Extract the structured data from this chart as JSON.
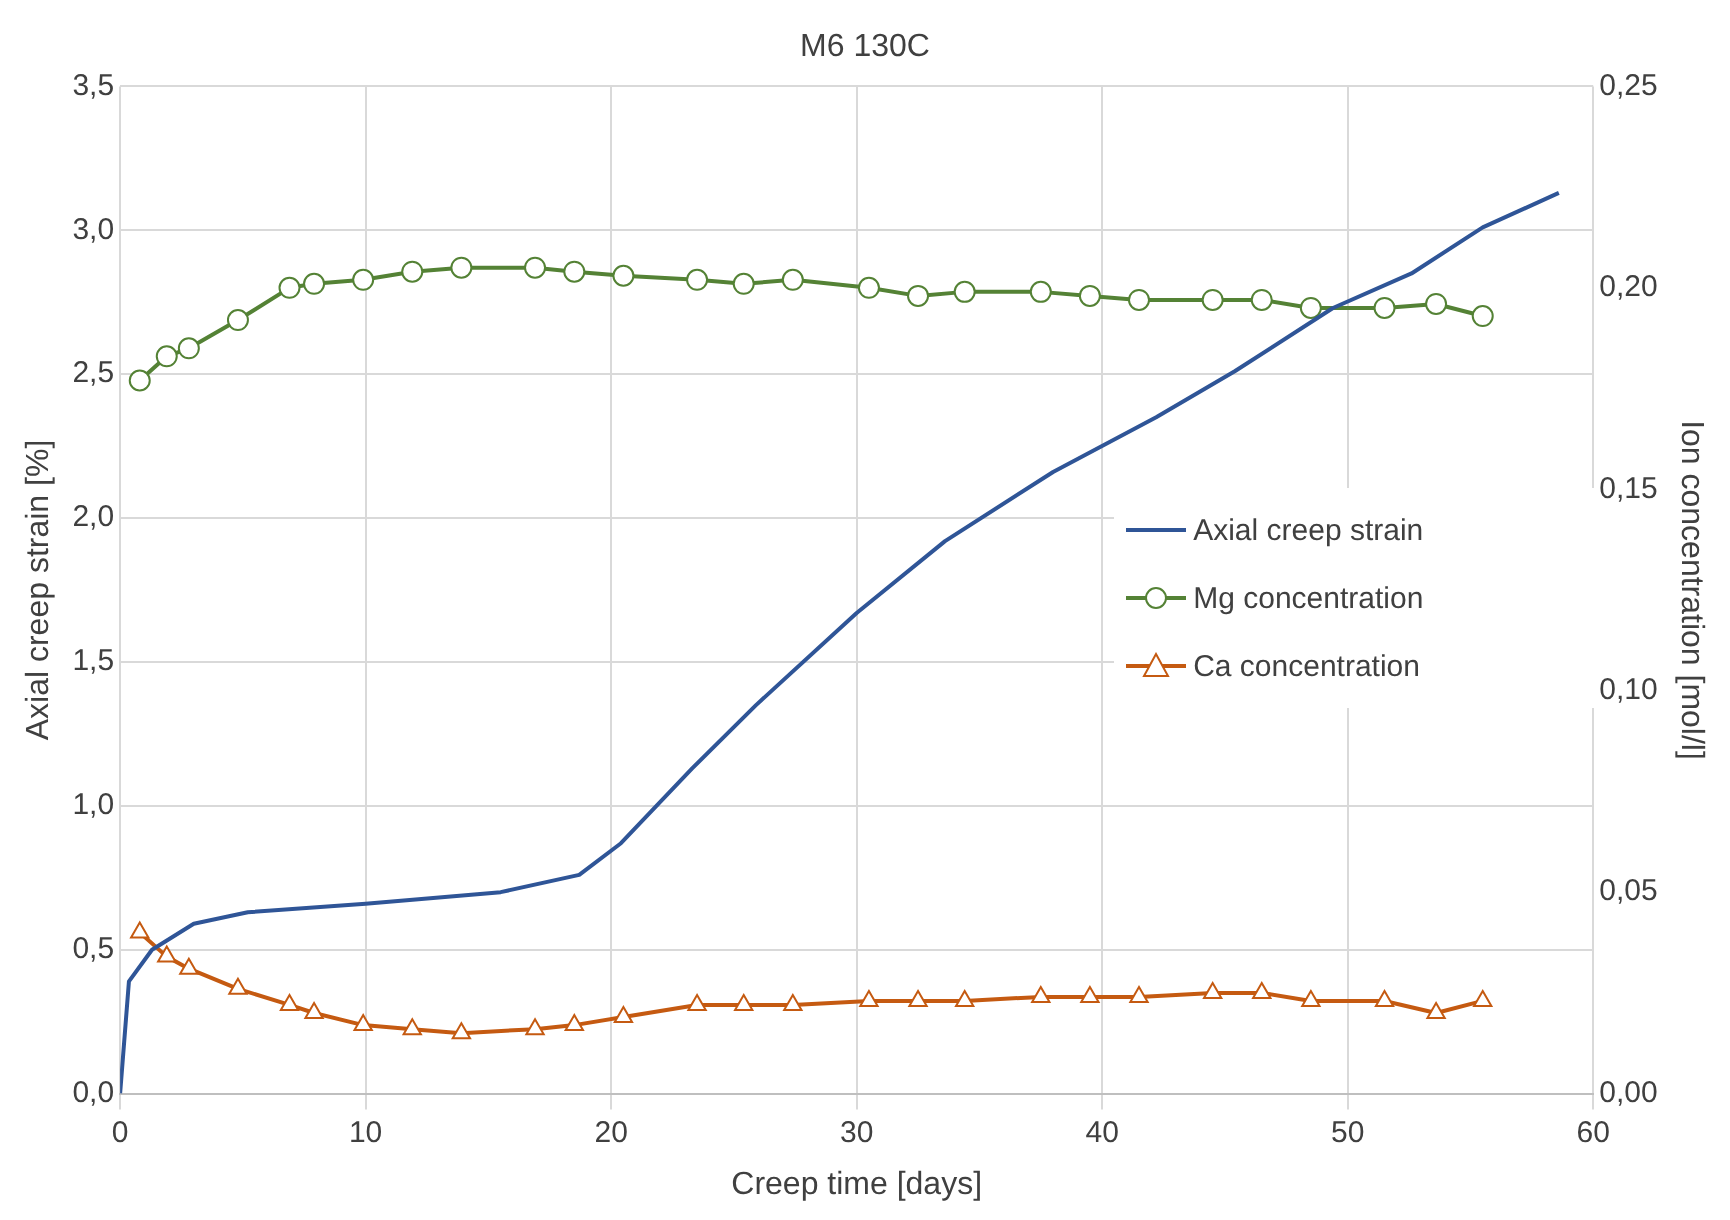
{
  "chart_data": {
    "type": "line",
    "title": "M6 130C",
    "xlabel": "Creep time [days]",
    "ylabel": "Axial creep strain [%]",
    "y2label": "Ion concentration [mol/l]",
    "xlim": [
      0,
      60
    ],
    "xticks": [
      0,
      10,
      20,
      30,
      40,
      50,
      60
    ],
    "ylim": [
      0,
      3.5
    ],
    "yticks": [
      {
        "value": 0,
        "label": "0,0"
      },
      {
        "value": 0.5,
        "label": "0,5"
      },
      {
        "value": 1,
        "label": "1,0"
      },
      {
        "value": 1.5,
        "label": "1,5"
      },
      {
        "value": 2,
        "label": "2,0"
      },
      {
        "value": 2.5,
        "label": "2,5"
      },
      {
        "value": 3,
        "label": "3,0"
      },
      {
        "value": 3.5,
        "label": "3,5"
      }
    ],
    "y2lim": [
      0,
      0.25
    ],
    "y2ticks": [
      {
        "value": 0,
        "label": "0,00"
      },
      {
        "value": 0.05,
        "label": "0,05"
      },
      {
        "value": 0.1,
        "label": "0,10"
      },
      {
        "value": 0.15,
        "label": "0,15"
      },
      {
        "value": 0.2,
        "label": "0,20"
      },
      {
        "value": 0.25,
        "label": "0,25"
      }
    ],
    "grid": true,
    "legend": "right",
    "line_style": "solid",
    "series": [
      {
        "name": "Axial creep strain",
        "color": "#2f5597",
        "marker": "none",
        "x": [
          0,
          0.36,
          1.3,
          3.0,
          5.2,
          10,
          15.5,
          18.7,
          20.4,
          23.3,
          25.9,
          30.0,
          33.6,
          38.0,
          42.2,
          45.4,
          49.4,
          52.6,
          55.5,
          58.6
        ],
        "values": [
          0,
          0.39,
          0.5,
          0.59,
          0.63,
          0.66,
          0.7,
          0.76,
          0.87,
          1.13,
          1.35,
          1.67,
          1.92,
          2.16,
          2.35,
          2.51,
          2.73,
          2.85,
          3.01,
          3.13
        ]
      },
      {
        "name": "Mg concentration",
        "color": "#548235",
        "marker": "circle",
        "axis": "y2",
        "x": [
          0.8,
          1.9,
          2.8,
          4.8,
          6.9,
          7.9,
          9.9,
          11.9,
          13.9,
          16.9,
          18.5,
          20.5,
          23.5,
          25.4,
          27.4,
          30.5,
          32.5,
          34.4,
          37.5,
          39.5,
          41.5,
          44.5,
          46.5,
          48.5,
          51.5,
          53.6,
          55.5
        ],
        "values": [
          0.177,
          0.183,
          0.185,
          0.192,
          0.2,
          0.201,
          0.202,
          0.204,
          0.205,
          0.205,
          0.204,
          0.203,
          0.202,
          0.201,
          0.202,
          0.2,
          0.198,
          0.199,
          0.199,
          0.198,
          0.197,
          0.197,
          0.197,
          0.195,
          0.195,
          0.196,
          0.193
        ]
      },
      {
        "name": "Ca concentration",
        "color": "#c55a11",
        "marker": "triangle",
        "axis": "y2",
        "x": [
          0.8,
          1.9,
          2.8,
          4.8,
          6.9,
          7.9,
          9.9,
          11.9,
          13.9,
          16.9,
          18.5,
          20.5,
          23.5,
          25.4,
          27.4,
          30.5,
          32.5,
          34.4,
          37.5,
          39.5,
          41.5,
          44.5,
          46.5,
          48.5,
          51.5,
          53.6,
          55.5
        ],
        "values": [
          0.04,
          0.034,
          0.031,
          0.026,
          0.022,
          0.02,
          0.017,
          0.016,
          0.015,
          0.016,
          0.017,
          0.019,
          0.022,
          0.022,
          0.022,
          0.023,
          0.023,
          0.023,
          0.024,
          0.024,
          0.024,
          0.025,
          0.025,
          0.023,
          0.023,
          0.02,
          0.023
        ]
      }
    ]
  }
}
